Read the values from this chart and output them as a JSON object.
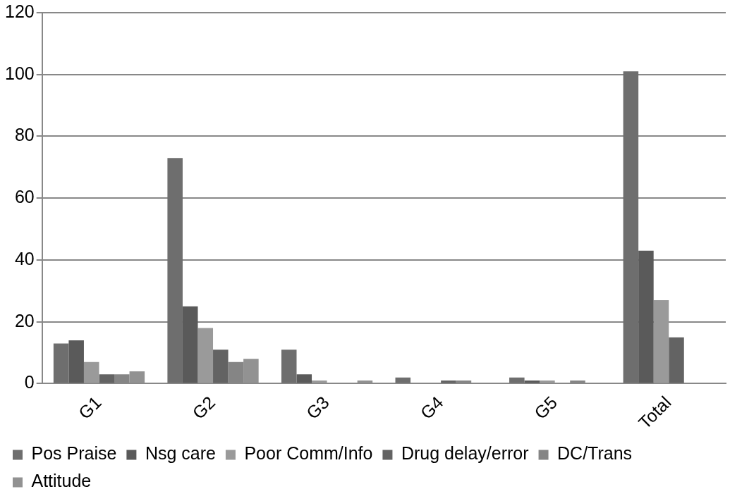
{
  "chart_data": {
    "type": "bar",
    "categories": [
      "G1",
      "G2",
      "G3",
      "G4",
      "G5",
      "Total"
    ],
    "series": [
      {
        "name": "Pos Praise",
        "color": "#6e6e6e",
        "values": [
          13,
          73,
          11,
          2,
          2,
          101
        ]
      },
      {
        "name": "Nsg care",
        "color": "#5a5a5a",
        "values": [
          14,
          25,
          3,
          0,
          1,
          43
        ]
      },
      {
        "name": "Poor Comm/Info",
        "color": "#9a9a9a",
        "values": [
          7,
          18,
          1,
          0,
          1,
          27
        ]
      },
      {
        "name": "Drug delay/error",
        "color": "#636363",
        "values": [
          3,
          11,
          0,
          1,
          0,
          15
        ]
      },
      {
        "name": "DC/Trans",
        "color": "#858585",
        "values": [
          3,
          7,
          0,
          1,
          1,
          null
        ]
      },
      {
        "name": "Attitude",
        "color": "#929292",
        "values": [
          4,
          8,
          1,
          0,
          0,
          null
        ]
      }
    ],
    "ylim": [
      0,
      120
    ],
    "yticks": [
      0,
      20,
      40,
      60,
      80,
      100,
      120
    ],
    "grid": "y",
    "legend": "bottom left"
  }
}
